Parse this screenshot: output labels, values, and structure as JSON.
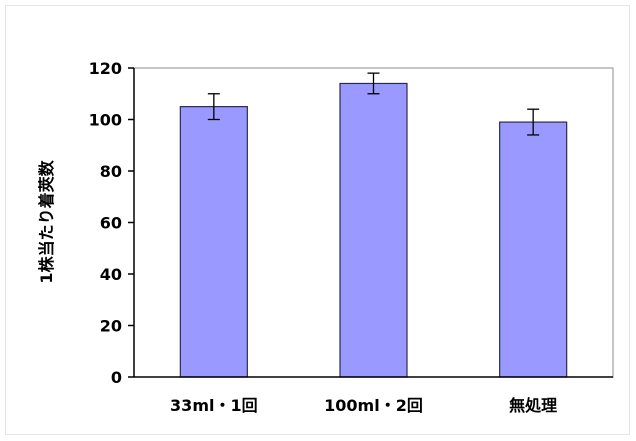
{
  "chart_data": {
    "type": "bar",
    "title": "",
    "xlabel": "",
    "ylabel": "1株当たり着莢数",
    "categories": [
      "33ml・1回",
      "100ml・2回",
      "無処理"
    ],
    "values": [
      105,
      114,
      99
    ],
    "errors": [
      5,
      4,
      5
    ],
    "ylim": [
      0,
      120
    ],
    "yticks": [
      0,
      20,
      40,
      60,
      80,
      100,
      120
    ],
    "grid": false,
    "legend": "none",
    "colors": {
      "bar": "#9999ff",
      "bar_edge": "#2b2b4f",
      "error": "#000000",
      "axis": "#000000"
    }
  }
}
